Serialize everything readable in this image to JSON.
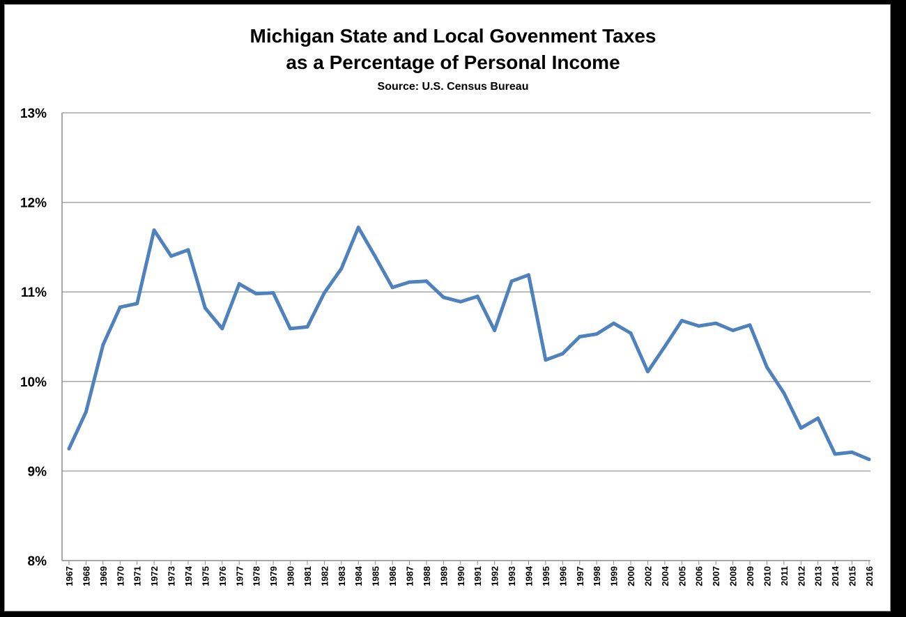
{
  "chart_data": {
    "type": "line",
    "title_line1": "Michigan State and Local Govenment Taxes",
    "title_line2": "as a Percentage of Personal Income",
    "subtitle": "Source: U.S. Census Bureau",
    "xlabel": "",
    "ylabel": "",
    "ylim": [
      8,
      13
    ],
    "yticks": [
      8,
      9,
      10,
      11,
      12,
      13
    ],
    "ytick_labels": [
      "8%",
      "9%",
      "10%",
      "11%",
      "12%",
      "13%"
    ],
    "grid": "horizontal",
    "legend": "none",
    "line_color": "#4f81bd",
    "categories": [
      "1967",
      "1968",
      "1969",
      "1970",
      "1971",
      "1972",
      "1973",
      "1974",
      "1975",
      "1976",
      "1977",
      "1978",
      "1979",
      "1980",
      "1981",
      "1982",
      "1983",
      "1984",
      "1985",
      "1986",
      "1987",
      "1988",
      "1989",
      "1990",
      "1991",
      "1992",
      "1993",
      "1994",
      "1995",
      "1996",
      "1997",
      "1998",
      "1999",
      "2000",
      "2002",
      "2004",
      "2005",
      "2006",
      "2007",
      "2008",
      "2009",
      "2010",
      "2011",
      "2012",
      "2013",
      "2014",
      "2015",
      "2016"
    ],
    "values": [
      9.25,
      9.66,
      10.41,
      10.83,
      10.87,
      11.69,
      11.4,
      11.47,
      10.82,
      10.59,
      11.09,
      10.98,
      10.99,
      10.59,
      10.61,
      10.99,
      11.26,
      11.72,
      11.39,
      11.05,
      11.11,
      11.12,
      10.94,
      10.89,
      10.95,
      10.57,
      11.12,
      11.19,
      10.24,
      10.31,
      10.5,
      10.53,
      10.65,
      10.54,
      10.11,
      10.39,
      10.68,
      10.62,
      10.65,
      10.57,
      10.63,
      10.16,
      9.87,
      9.48,
      9.59,
      9.19,
      9.21,
      9.13
    ]
  }
}
